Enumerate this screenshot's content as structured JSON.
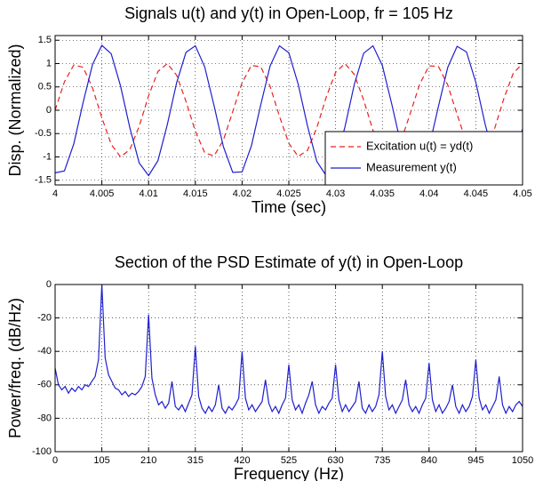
{
  "chart_data": [
    {
      "type": "line",
      "title": "Signals u(t) and y(t) in Open-Loop, fr = 105 Hz",
      "x_label": "Time (sec)",
      "y_label": "Disp. (Normalized)",
      "x": [
        4,
        4.001,
        4.002,
        4.003,
        4.004,
        4.005,
        4.006,
        4.007,
        4.008,
        4.009,
        4.01,
        4.011,
        4.012,
        4.013,
        4.014,
        4.015,
        4.016,
        4.017,
        4.018,
        4.019,
        4.02,
        4.021,
        4.022,
        4.023,
        4.024,
        4.025,
        4.026,
        4.027,
        4.028,
        4.029,
        4.03,
        4.031,
        4.032,
        4.033,
        4.034,
        4.035,
        4.036,
        4.037,
        4.038,
        4.039,
        4.04,
        4.041,
        4.042,
        4.043,
        4.044,
        4.045,
        4.046,
        4.047,
        4.048,
        4.049,
        4.05
      ],
      "series": [
        {
          "name": "Excitation u(t) = yd(t)",
          "color": "#e8211e",
          "linestyle": "dashed",
          "values": [
            0,
            0.61,
            0.97,
            0.92,
            0.48,
            -0.16,
            -0.73,
            -1,
            -0.84,
            -0.34,
            0.31,
            0.83,
            1,
            0.75,
            0.19,
            -0.45,
            -0.91,
            -0.98,
            -0.64,
            -0.03,
            0.59,
            0.96,
            0.93,
            0.51,
            -0.13,
            -0.71,
            -0.99,
            -0.86,
            -0.37,
            0.28,
            0.81,
            1,
            0.77,
            0.22,
            -0.43,
            -0.89,
            -0.98,
            -0.66,
            -0.06,
            0.56,
            0.95,
            0.94,
            0.54,
            -0.09,
            -0.69,
            -0.99,
            -0.88,
            -0.4,
            0.25,
            0.79,
            1
          ]
        },
        {
          "name": "Measurement y(t)",
          "color": "#1f1fcf",
          "linestyle": "solid",
          "values": [
            -1.34,
            -1.3,
            -0.72,
            0.17,
            0.98,
            1.39,
            1.21,
            0.52,
            -0.38,
            -1.13,
            -1.4,
            -1.08,
            -0.31,
            0.59,
            1.24,
            1.38,
            0.93,
            0.1,
            -0.78,
            -1.33,
            -1.32,
            -0.76,
            0.12,
            0.95,
            1.38,
            1.23,
            0.56,
            -0.34,
            -1.1,
            -1.4,
            -1.11,
            -0.36,
            0.55,
            1.22,
            1.38,
            0.96,
            0.14,
            -0.74,
            -1.31,
            -1.33,
            -0.79,
            0.08,
            0.92,
            1.37,
            1.25,
            0.6,
            -0.3,
            -1.07,
            -1.4,
            -1.14,
            -0.4
          ]
        }
      ],
      "xlim": [
        4,
        4.05
      ],
      "xticks": [
        4,
        4.005,
        4.01,
        4.015,
        4.02,
        4.025,
        4.03,
        4.035,
        4.04,
        4.045,
        4.05
      ],
      "ylim": [
        -1.6,
        1.6
      ],
      "yticks": [
        -1.5,
        -1,
        -0.5,
        0,
        0.5,
        1,
        1.5
      ],
      "grid": true,
      "legend": "lower right"
    },
    {
      "type": "line",
      "title": "Section of the PSD Estimate of y(t) in Open-Loop",
      "x_label": "Frequency (Hz)",
      "y_label": "Power/freq. (dB/Hz)",
      "x": [
        0,
        7.5,
        15,
        22.5,
        30,
        37.5,
        45,
        52.5,
        60,
        67.5,
        75,
        82.5,
        90,
        97.5,
        105,
        112.5,
        120,
        127.5,
        135,
        142.5,
        150,
        157.5,
        165,
        172.5,
        180,
        187.5,
        195,
        202.5,
        210,
        217.5,
        225,
        232.5,
        240,
        247.5,
        255,
        262.5,
        270,
        277.5,
        285,
        292.5,
        300,
        307.5,
        315,
        322.5,
        330,
        337.5,
        345,
        352.5,
        360,
        367.5,
        375,
        382.5,
        390,
        397.5,
        405,
        412.5,
        420,
        427.5,
        435,
        442.5,
        450,
        457.5,
        465,
        472.5,
        480,
        487.5,
        495,
        502.5,
        510,
        517.5,
        525,
        532.5,
        540,
        547.5,
        555,
        562.5,
        570,
        577.5,
        585,
        592.5,
        600,
        607.5,
        615,
        622.5,
        630,
        637.5,
        645,
        652.5,
        660,
        667.5,
        675,
        682.5,
        690,
        697.5,
        705,
        712.5,
        720,
        727.5,
        735,
        742.5,
        750,
        757.5,
        765,
        772.5,
        780,
        787.5,
        795,
        802.5,
        810,
        817.5,
        825,
        832.5,
        840,
        847.5,
        855,
        862.5,
        870,
        877.5,
        885,
        892.5,
        900,
        907.5,
        915,
        922.5,
        930,
        937.5,
        945,
        952.5,
        960,
        967.5,
        975,
        982.5,
        990,
        997.5,
        1005,
        1012.5,
        1020,
        1027.5,
        1035,
        1042.5,
        1050
      ],
      "series": [
        {
          "color": "#1f1fcf",
          "linestyle": "solid",
          "values": [
            -50,
            -60,
            -63,
            -61,
            -65,
            -62,
            -64,
            -61,
            -63,
            -60,
            -61,
            -58,
            -55,
            -45,
            0,
            -44,
            -54,
            -58,
            -62,
            -63,
            -66,
            -64,
            -67,
            -65,
            -66,
            -64,
            -61,
            -55,
            -18,
            -56,
            -66,
            -72,
            -70,
            -74,
            -71,
            -58,
            -73,
            -75,
            -72,
            -76,
            -71,
            -66,
            -37,
            -67,
            -74,
            -77,
            -73,
            -76,
            -72,
            -60,
            -74,
            -77,
            -73,
            -75,
            -72,
            -68,
            -40,
            -68,
            -75,
            -72,
            -76,
            -73,
            -70,
            -57,
            -71,
            -76,
            -73,
            -77,
            -72,
            -68,
            -48,
            -69,
            -75,
            -72,
            -77,
            -71,
            -66,
            -58,
            -72,
            -77,
            -73,
            -75,
            -71,
            -68,
            -48,
            -69,
            -76,
            -72,
            -76,
            -73,
            -70,
            -58,
            -74,
            -77,
            -72,
            -76,
            -73,
            -66,
            -40,
            -67,
            -75,
            -72,
            -77,
            -73,
            -69,
            -57,
            -72,
            -76,
            -73,
            -77,
            -72,
            -68,
            -47,
            -69,
            -76,
            -72,
            -77,
            -74,
            -70,
            -60,
            -73,
            -77,
            -72,
            -76,
            -73,
            -67,
            -45,
            -68,
            -75,
            -72,
            -77,
            -73,
            -69,
            -55,
            -72,
            -77,
            -73,
            -76,
            -72,
            -70,
            -73
          ]
        }
      ],
      "xlim": [
        0,
        1050
      ],
      "xticks": [
        0,
        105,
        210,
        315,
        420,
        525,
        630,
        735,
        840,
        945,
        1050
      ],
      "ylim": [
        -100,
        0
      ],
      "yticks": [
        -100,
        -80,
        -60,
        -40,
        -20,
        0
      ],
      "grid": true
    }
  ]
}
